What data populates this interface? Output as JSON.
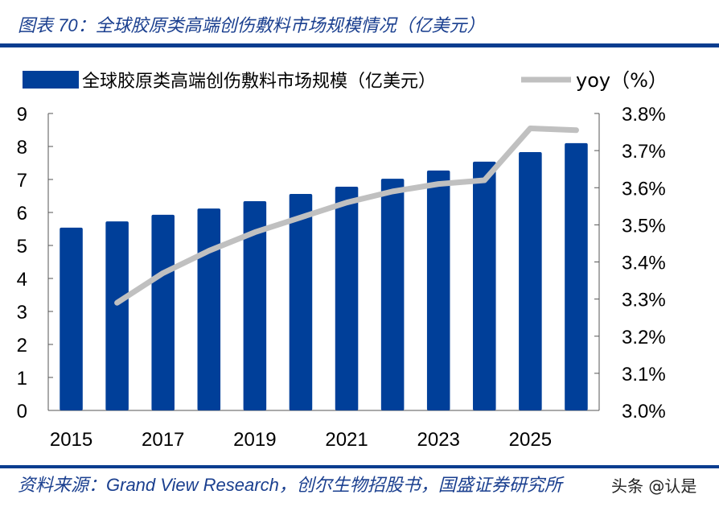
{
  "title": "图表 70：全球胶原类高端创伤敷料市场规模情况（亿美元）",
  "source": "资料来源：Grand View Research，创尔生物招股书，国盛证券研究所",
  "watermark": "头条 @认是",
  "chart_data": {
    "type": "bar+line",
    "categories": [
      "2015",
      "2016",
      "2017",
      "2018",
      "2019",
      "2020",
      "2021",
      "2022",
      "2023",
      "2024",
      "2025",
      "2026"
    ],
    "x_tick_labels": [
      "2015",
      "2017",
      "2019",
      "2021",
      "2023",
      "2025"
    ],
    "series": [
      {
        "name": "全球胶原类高端创伤敷料市场规模（亿美元）",
        "type": "bar",
        "axis": "left",
        "color": "#003f99",
        "values": [
          5.54,
          5.73,
          5.93,
          6.12,
          6.34,
          6.56,
          6.78,
          7.02,
          7.27,
          7.54,
          7.83,
          8.1
        ]
      },
      {
        "name": "yoy（%）",
        "type": "line",
        "axis": "right",
        "color": "#c0c0c0",
        "values": [
          null,
          3.29,
          3.37,
          3.43,
          3.48,
          3.52,
          3.56,
          3.59,
          3.61,
          3.62,
          3.76,
          3.755
        ]
      }
    ],
    "y_left": {
      "range": [
        0,
        9
      ],
      "ticks": [
        "0",
        "1",
        "2",
        "3",
        "4",
        "5",
        "6",
        "7",
        "8",
        "9"
      ]
    },
    "y_right": {
      "range": [
        3.0,
        3.8
      ],
      "ticks": [
        "3.0%",
        "3.1%",
        "3.2%",
        "3.3%",
        "3.4%",
        "3.5%",
        "3.6%",
        "3.7%",
        "3.8%"
      ]
    },
    "legend_position": "top",
    "grid": false
  }
}
